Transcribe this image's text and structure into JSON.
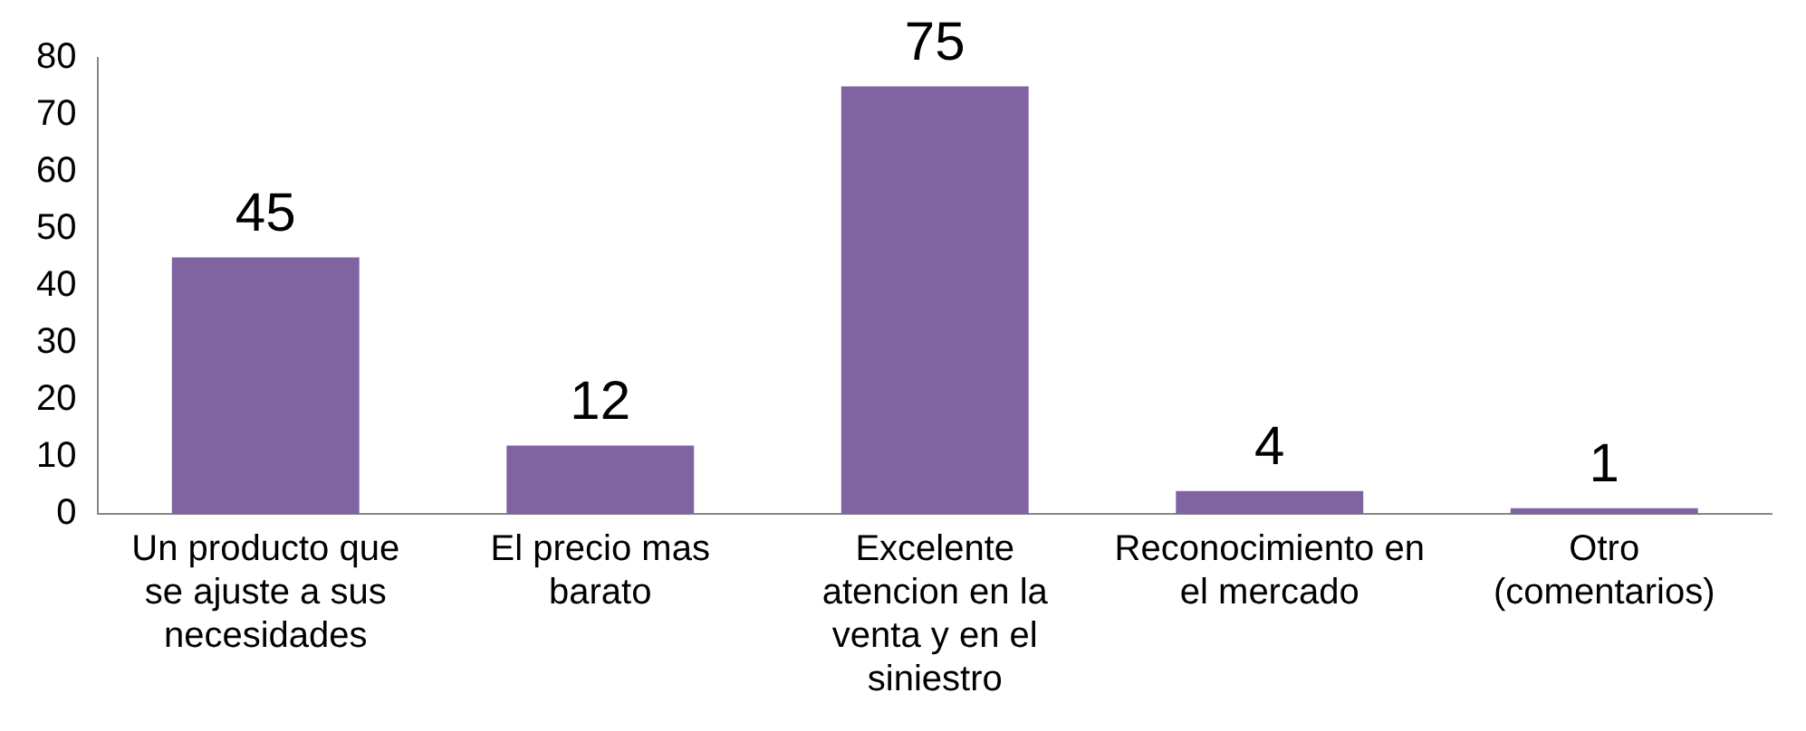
{
  "chart_data": {
    "type": "bar",
    "categories": [
      "Un producto que se ajuste a sus necesidades",
      "El precio mas barato",
      "Excelente atencion en la venta y en el siniestro",
      "Reconocimiento en el mercado",
      "Otro (comentarios)"
    ],
    "values": [
      45,
      12,
      75,
      4,
      1
    ],
    "color": "#8064a2",
    "ylim": [
      0,
      80
    ],
    "yticks": [
      0,
      10,
      20,
      30,
      40,
      50,
      60,
      70,
      80
    ],
    "grid": false,
    "legend": false,
    "data_labels": true
  }
}
